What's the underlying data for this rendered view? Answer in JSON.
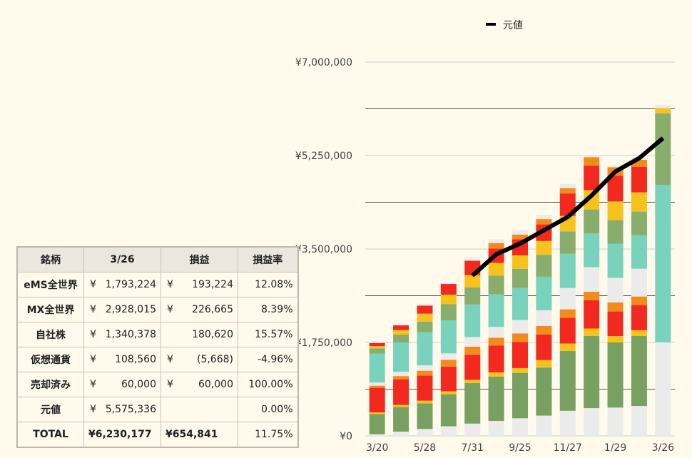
{
  "chart_data": {
    "type": "bar",
    "stacked": true,
    "x_labels": [
      "3/20",
      "",
      "5/28",
      "",
      "7/31",
      "",
      "9/25",
      "",
      "11/27",
      "",
      "1/29",
      "",
      "3/26"
    ],
    "y_ticks": [
      "¥0",
      "¥1,750,000",
      "¥3,500,000",
      "¥5,250,000",
      "¥7,000,000"
    ],
    "ylim": [
      0,
      7000000
    ],
    "grid": true,
    "legend": {
      "position": "top",
      "label": "元値"
    },
    "series": [
      {
        "color": "#ebebeb",
        "values": [
          30000,
          80000,
          130000,
          180000,
          230000,
          280000,
          330000,
          380000,
          470000,
          520000,
          530000,
          560000,
          1750000
        ]
      },
      {
        "color": "#78a060",
        "values": [
          380000,
          460000,
          480000,
          600000,
          760000,
          830000,
          850000,
          900000,
          1120000,
          1350000,
          1220000,
          1310000,
          0
        ]
      },
      {
        "color": "#f7c21c",
        "values": [
          30000,
          40000,
          50000,
          55000,
          60000,
          80000,
          90000,
          140000,
          140000,
          140000,
          120000,
          110000,
          0
        ]
      },
      {
        "color": "#f2291f",
        "values": [
          460000,
          480000,
          470000,
          460000,
          470000,
          500000,
          490000,
          480000,
          480000,
          530000,
          460000,
          470000,
          0
        ]
      },
      {
        "color": "#f38b1c",
        "values": [
          40000,
          60000,
          90000,
          130000,
          150000,
          150000,
          160000,
          160000,
          160000,
          160000,
          170000,
          160000,
          0
        ]
      },
      {
        "color": "#ebebeb",
        "values": [
          60000,
          80000,
          100000,
          120000,
          180000,
          200000,
          250000,
          290000,
          400000,
          460000,
          460000,
          520000,
          0
        ]
      },
      {
        "color": "#78d2bc",
        "values": [
          540000,
          550000,
          620000,
          620000,
          610000,
          610000,
          600000,
          630000,
          640000,
          630000,
          640000,
          630000,
          2950000
        ]
      },
      {
        "color": "#88ad6c",
        "values": [
          100000,
          150000,
          200000,
          300000,
          320000,
          350000,
          360000,
          410000,
          420000,
          450000,
          440000,
          440000,
          1340000
        ]
      },
      {
        "color": "#f7c21c",
        "values": [
          40000,
          80000,
          150000,
          180000,
          230000,
          240000,
          250000,
          260000,
          290000,
          360000,
          350000,
          360000,
          100000
        ]
      },
      {
        "color": "#f2291f",
        "values": [
          60000,
          90000,
          150000,
          200000,
          270000,
          270000,
          300000,
          310000,
          420000,
          460000,
          480000,
          480000,
          0
        ]
      },
      {
        "color": "#f38b1c",
        "values": [
          0,
          0,
          0,
          0,
          0,
          100000,
          90000,
          100000,
          100000,
          160000,
          160000,
          130000,
          0
        ]
      },
      {
        "color": "#ebebeb",
        "values": [
          20000,
          30000,
          30000,
          30000,
          60000,
          70000,
          80000,
          80000,
          80000,
          30000,
          30000,
          30000,
          60000
        ]
      }
    ],
    "line": {
      "name": "元値",
      "color": "#000000",
      "values": [
        null,
        null,
        null,
        null,
        3000000,
        3400000,
        3600000,
        3850000,
        4100000,
        4500000,
        4950000,
        5200000,
        5575336
      ]
    }
  },
  "table": {
    "headers": [
      "銘柄",
      "3/26",
      "損益",
      "損益率"
    ],
    "rows": [
      {
        "name": "eMS全世界",
        "value_cur": "¥",
        "value": "1,793,224",
        "pl_cur": "¥",
        "pl": "193,224",
        "rate": "12.08%"
      },
      {
        "name": "MX全世界",
        "value_cur": "¥",
        "value": "2,928,015",
        "pl_cur": "¥",
        "pl": "226,665",
        "rate": "8.39%"
      },
      {
        "name": "自社株",
        "value_cur": "¥",
        "value": "1,340,378",
        "pl_cur": "",
        "pl": "180,620",
        "rate": "15.57%"
      },
      {
        "name": "仮想通貨",
        "value_cur": "¥",
        "value": "108,560",
        "pl_cur": "¥",
        "pl": "(5,668)",
        "rate": "-4.96%"
      },
      {
        "name": "売却済み",
        "value_cur": "¥",
        "value": "60,000",
        "pl_cur": "¥",
        "pl": "60,000",
        "rate": "100.00%"
      },
      {
        "name": "元値",
        "value_cur": "¥",
        "value": "5,575,336",
        "pl_cur": "",
        "pl": "",
        "rate": "0.00%"
      }
    ],
    "total": {
      "name": "TOTAL",
      "value": "¥6,230,177",
      "pl": "¥654,841",
      "rate": "11.75%"
    }
  }
}
